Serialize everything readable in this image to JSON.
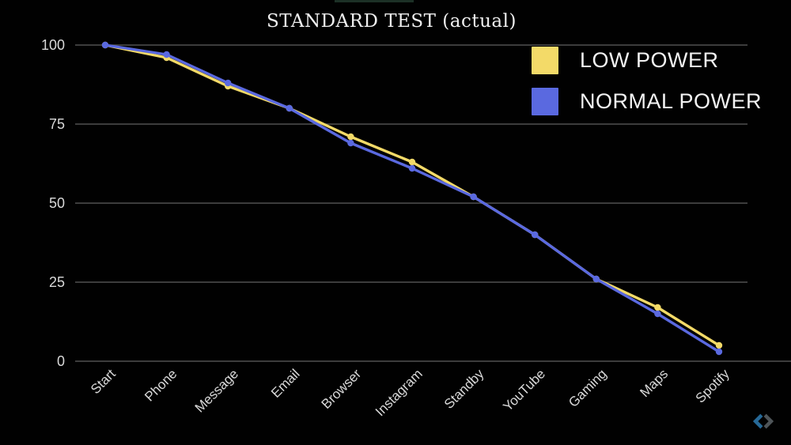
{
  "page": {
    "background": "#010101",
    "top_accent_bar_color": "#1c3026"
  },
  "chart_data": {
    "type": "line",
    "title": "STANDARD TEST (actual)",
    "xlabel": "",
    "ylabel": "",
    "categories": [
      "Start",
      "Phone",
      "Message",
      "Email",
      "Browser",
      "Instagram",
      "Standby",
      "YouTube",
      "Gaming",
      "Maps",
      "Spotify"
    ],
    "series": [
      {
        "name": "LOW POWER",
        "color": "#F3DA68",
        "values": [
          100,
          96,
          87,
          80,
          71,
          63,
          52,
          40,
          26,
          17,
          5
        ]
      },
      {
        "name": "NORMAL POWER",
        "color": "#5A69E0",
        "values": [
          100,
          97,
          88,
          80,
          69,
          61,
          52,
          40,
          26,
          15,
          3
        ]
      }
    ],
    "ylim": [
      0,
      100
    ],
    "yticks": [
      0,
      25,
      50,
      75,
      100
    ],
    "grid": true,
    "legend_position": "top-right",
    "gridline_color": "#515151",
    "axis_text_color": "#d9d9d9",
    "title_color": "#efefef"
  },
  "watermark": {
    "icon": "diamond-spiral-logo",
    "blue": "#2d7cb3",
    "gray": "#5d6469"
  }
}
